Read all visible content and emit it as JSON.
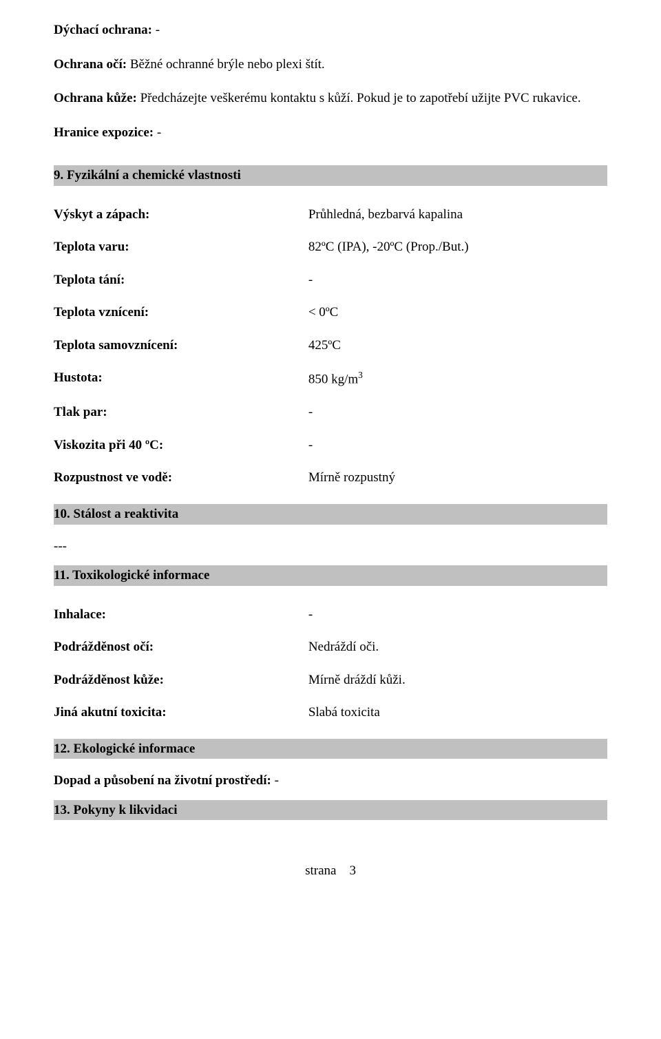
{
  "top": {
    "l1_label": "Dýchací ochrana:",
    "l1_value": "-",
    "l2_label": "Ochrana očí:",
    "l2_value": "Běžné ochranné brýle nebo plexi štít.",
    "l3_label": "Ochrana kůže:",
    "l3_value": "Předcházejte veškerému kontaktu s kůží. Pokud je to zapotřebí užijte PVC rukavice.",
    "l4_label": "Hranice expozice:",
    "l4_value": "-"
  },
  "s9": {
    "title": "9. Fyzikální a chemické vlastnosti",
    "rows": [
      {
        "k": "Výskyt a zápach:",
        "v": "Průhledná, bezbarvá kapalina"
      },
      {
        "k": "Teplota varu:",
        "v": "82ºC (IPA), -20ºC (Prop./But.)"
      },
      {
        "k": "Teplota tání:",
        "v": "-"
      },
      {
        "k": "Teplota vznícení:",
        "v": "< 0ºC"
      },
      {
        "k": "Teplota samovznícení:",
        "v": "425ºC"
      },
      {
        "k": "Hustota:",
        "v_html": "850 kg/m<sup>3</sup>"
      },
      {
        "k": "Tlak par:",
        "v": "-"
      },
      {
        "k": "Viskozita při 40 ºC:",
        "v": "-"
      },
      {
        "k": "Rozpustnost ve vodě:",
        "v": "Mírně rozpustný"
      }
    ]
  },
  "s10": {
    "title": "10. Stálost a reaktivita",
    "body": "---"
  },
  "s11": {
    "title": "11. Toxikologické informace",
    "rows": [
      {
        "k": "Inhalace:",
        "v": "-"
      },
      {
        "k": "Podrážděnost očí:",
        "v": "Nedráždí oči."
      },
      {
        "k": "Podrážděnost kůže:",
        "v": "Mírně dráždí kůži."
      },
      {
        "k": "Jiná akutní toxicita:",
        "v": "Slabá toxicita"
      }
    ]
  },
  "s12": {
    "title": "12. Ekologické informace",
    "body_label": "Dopad a působení na životní prostředí:",
    "body_value": "-"
  },
  "s13": {
    "title": "13. Pokyny k likvidaci"
  },
  "footer": {
    "label": "strana",
    "page": "3"
  }
}
